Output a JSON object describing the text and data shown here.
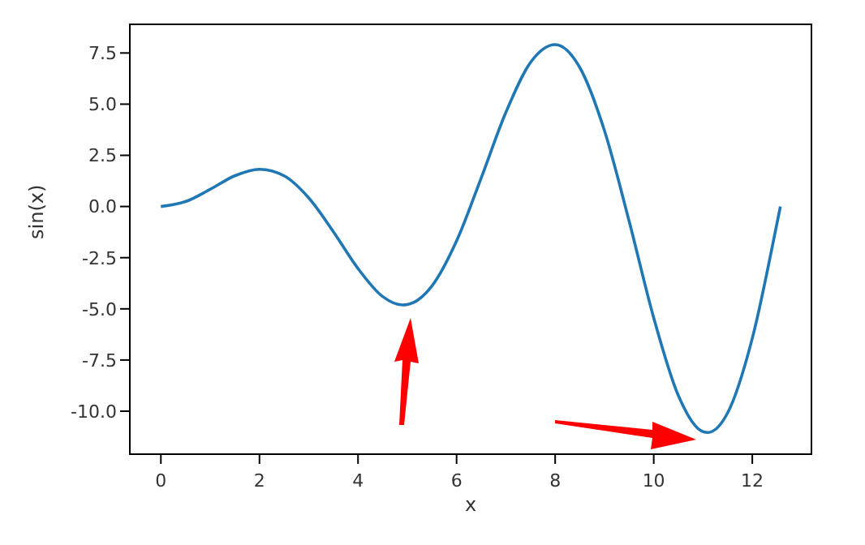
{
  "chart_data": {
    "type": "line",
    "xlabel": "x",
    "ylabel": "sin(x)",
    "xlim": [
      -0.63,
      13.2
    ],
    "ylim": [
      -12.1,
      8.9
    ],
    "xticks": [
      0,
      2,
      4,
      6,
      8,
      10,
      12
    ],
    "yticks": [
      {
        "value": -10,
        "label": "-10.0"
      },
      {
        "value": -7.5,
        "label": "-7.5"
      },
      {
        "value": -5,
        "label": "-5.0"
      },
      {
        "value": -2.5,
        "label": "-2.5"
      },
      {
        "value": 0,
        "label": "0.0"
      },
      {
        "value": 2.5,
        "label": "2.5"
      },
      {
        "value": 5,
        "label": "5.0"
      },
      {
        "value": 7.5,
        "label": "7.5"
      }
    ],
    "x": [
      0,
      0.5,
      1,
      1.5,
      2,
      2.5,
      3,
      3.5,
      4,
      4.5,
      4.9,
      5,
      5.5,
      6,
      6.5,
      7,
      7.5,
      8,
      8.5,
      9,
      9.5,
      10,
      10.5,
      11,
      11.1,
      11.5,
      12,
      12.5,
      12.57
    ],
    "series": [
      {
        "color": "#1f77b4",
        "values": [
          0,
          0.24,
          0.84,
          1.5,
          1.82,
          1.5,
          0.42,
          -1.23,
          -3.03,
          -4.4,
          -4.81,
          -4.79,
          -3.88,
          -1.68,
          1.4,
          4.6,
          7.04,
          7.91,
          6.79,
          3.71,
          -0.71,
          -5.44,
          -9.24,
          -11,
          -11.04,
          -10.08,
          -6.44,
          -0.83,
          0
        ]
      }
    ],
    "grid": false,
    "marker": "none",
    "line_style": "solid"
  }
}
